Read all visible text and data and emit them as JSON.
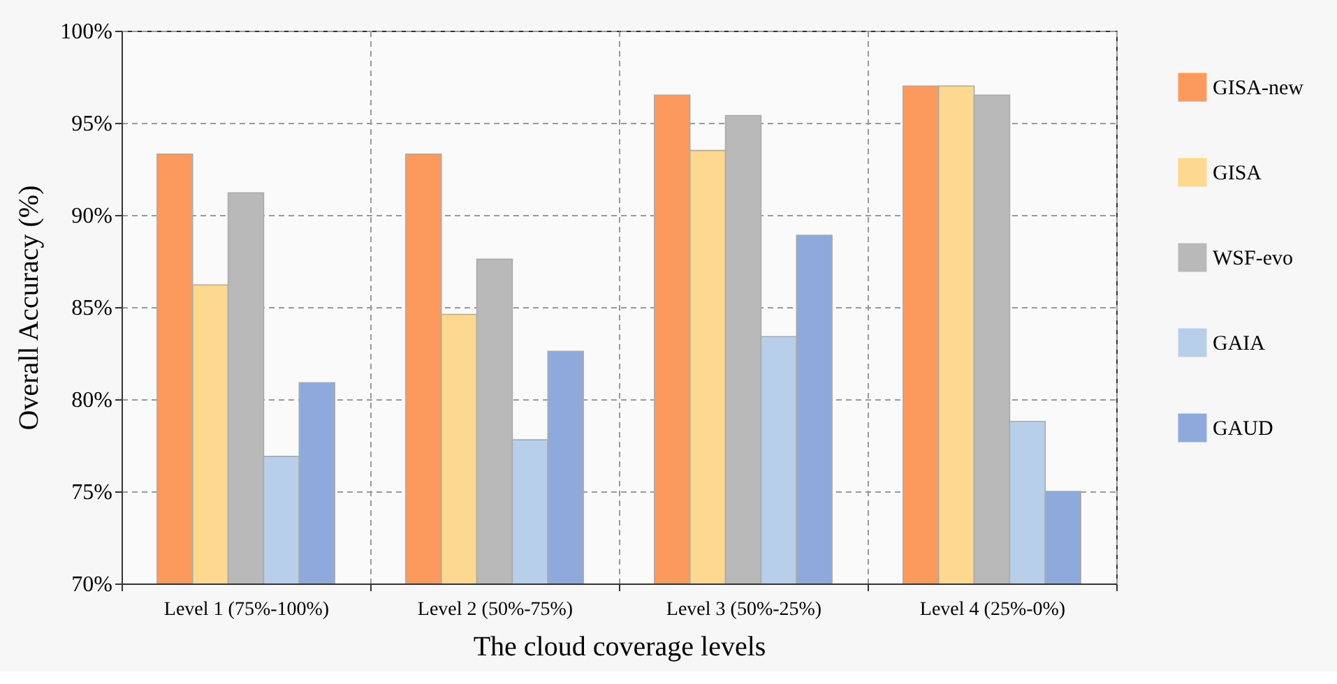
{
  "chart_data": {
    "type": "bar",
    "xlabel": "The cloud coverage levels",
    "ylabel": "Overall Accuracy  (%)",
    "categories": [
      "Level  1 (75%-100%)",
      "Level  2 (50%-75%)",
      "Level  3 (50%-25%)",
      "Level  4 (25%-0%)"
    ],
    "series": [
      {
        "name": "GISA-new",
        "color": "#fc9a5e",
        "values": [
          93.3,
          93.3,
          96.5,
          97.0
        ]
      },
      {
        "name": "GISA",
        "color": "#fdd98f",
        "values": [
          86.2,
          84.6,
          93.5,
          97.0
        ]
      },
      {
        "name": "WSF-evo",
        "color": "#b9b9b9",
        "values": [
          91.2,
          87.6,
          95.4,
          96.5
        ]
      },
      {
        "name": "GAIA",
        "color": "#b8cfea",
        "values": [
          76.9,
          77.8,
          83.4,
          78.8
        ]
      },
      {
        "name": "GAUD",
        "color": "#8eaadc",
        "values": [
          80.9,
          82.6,
          88.9,
          75.0
        ]
      }
    ],
    "ylim": [
      70,
      100
    ],
    "yticks": [
      {
        "value": 70,
        "label": "70%"
      },
      {
        "value": 75,
        "label": "75%"
      },
      {
        "value": 80,
        "label": "80%"
      },
      {
        "value": 85,
        "label": "85%"
      },
      {
        "value": 90,
        "label": "90%"
      },
      {
        "value": 95,
        "label": "95%"
      },
      {
        "value": 100,
        "label": "100%"
      }
    ],
    "grid": true,
    "legend": "right"
  }
}
